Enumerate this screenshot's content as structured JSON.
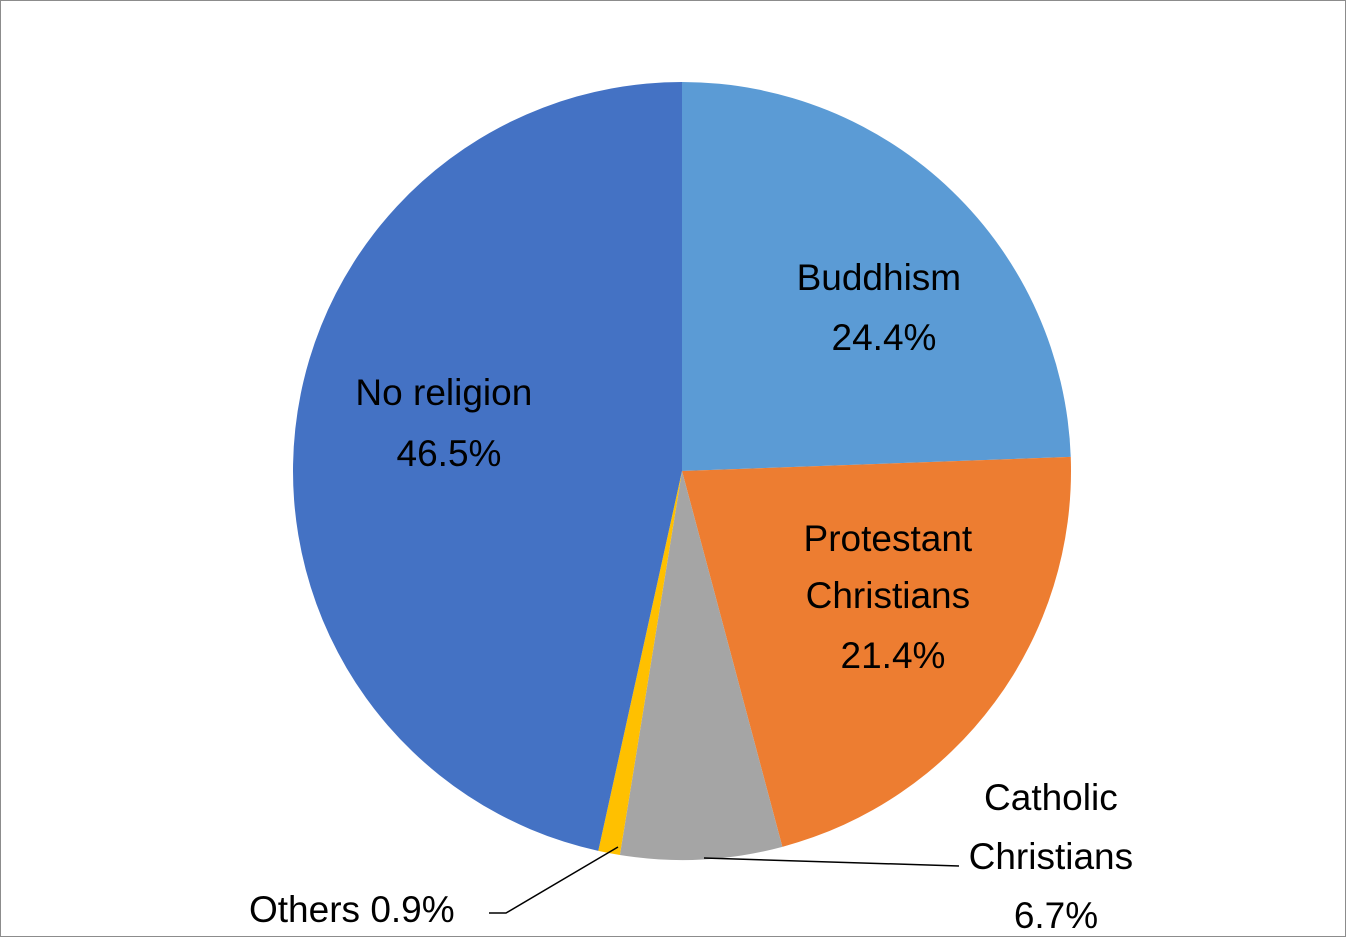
{
  "chart_data": {
    "type": "pie",
    "title": "",
    "start_angle_deg": 0,
    "direction": "clockwise",
    "slices": [
      {
        "label": "Buddhism",
        "value": 24.4,
        "value_label": "24.4%",
        "color": "#5B9BD5"
      },
      {
        "label": "Protestant Christians",
        "value": 21.4,
        "value_label": "21.4%",
        "color": "#ED7D31"
      },
      {
        "label": "Catholic Christians",
        "value": 6.7,
        "value_label": "6.7%",
        "color": "#A5A5A5"
      },
      {
        "label": "Others",
        "value": 0.9,
        "value_label": "0.9%",
        "color": "#FFC000"
      },
      {
        "label": "No religion",
        "value": 46.5,
        "value_label": "46.5%",
        "color": "#4472C4"
      }
    ],
    "legend": "none"
  },
  "labels": {
    "buddhism": {
      "line1": "Buddhism",
      "line2": "24.4%"
    },
    "protestant": {
      "line1": "Protestant",
      "line2": "Christians",
      "line3": "21.4%"
    },
    "catholic": {
      "line1": "Catholic",
      "line2": "Christians",
      "line3": "6.7%"
    },
    "others": {
      "line1": "Others 0.9%"
    },
    "no_religion": {
      "line1": "No religion",
      "line2": "46.5%"
    }
  }
}
